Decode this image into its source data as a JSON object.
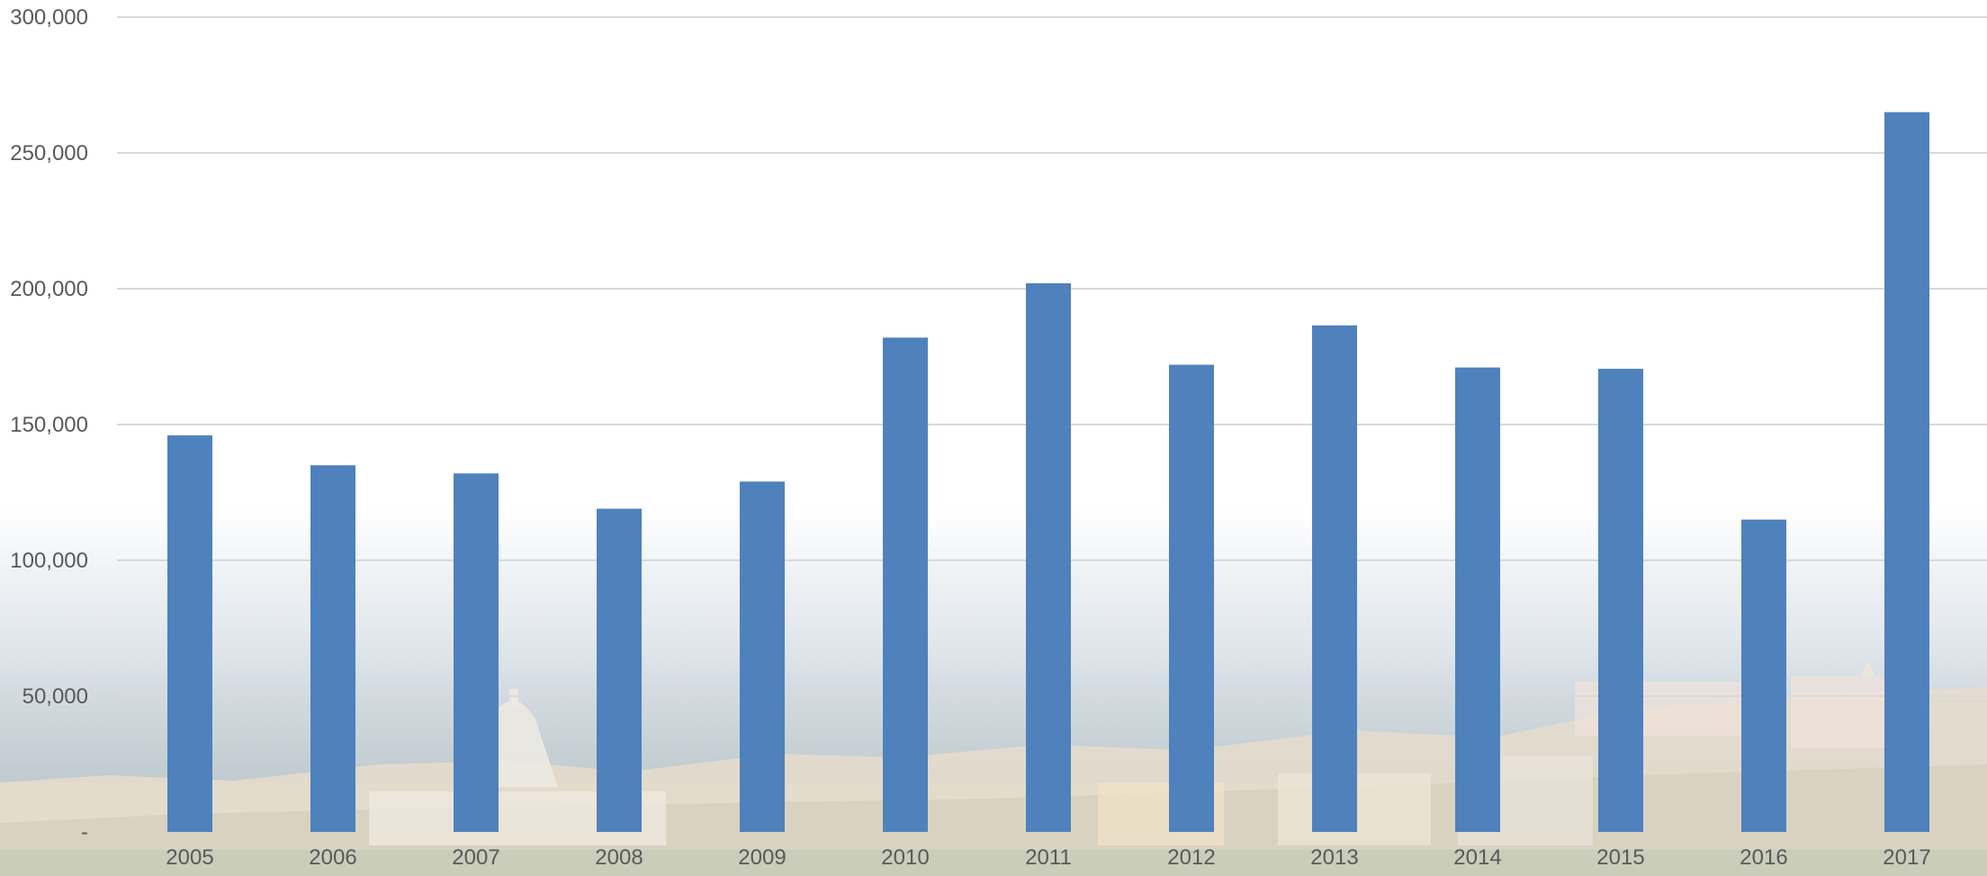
{
  "chart_data": {
    "type": "bar",
    "title": "",
    "xlabel": "",
    "ylabel": "",
    "categories": [
      "2005",
      "2006",
      "2007",
      "2008",
      "2009",
      "2010",
      "2011",
      "2012",
      "2013",
      "2014",
      "2015",
      "2016",
      "2017"
    ],
    "values": [
      146000,
      135000,
      132000,
      119000,
      129000,
      182000,
      202000,
      172000,
      186500,
      171000,
      170500,
      115000,
      265000
    ],
    "ylim": [
      0,
      300000
    ],
    "yticks": [
      0,
      50000,
      100000,
      150000,
      200000,
      250000,
      300000
    ],
    "ytick_labels": [
      "-",
      "50,000",
      "100,000",
      "150,000",
      "200,000",
      "250,000",
      "300,000"
    ],
    "grid": true,
    "legend": "none",
    "bar_color": "#4f81bd",
    "grid_color": "#d9d9d9",
    "background": "faded photo of a coastal city skyline beneath the plot"
  }
}
